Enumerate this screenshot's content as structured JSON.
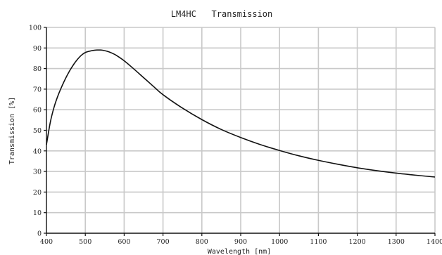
{
  "chart_data": {
    "type": "line",
    "title": "LM4HC   Transmission",
    "xlabel": "Wavelength [nm]",
    "ylabel": "Transmission [%]",
    "xlim": [
      400,
      1400
    ],
    "ylim": [
      0,
      100
    ],
    "x_ticks": [
      400,
      500,
      600,
      700,
      800,
      900,
      1000,
      1100,
      1200,
      1300,
      1400
    ],
    "y_ticks": [
      0,
      10,
      20,
      30,
      40,
      50,
      60,
      70,
      80,
      90,
      100
    ],
    "grid": true,
    "series": [
      {
        "x": [
          400,
          410,
          420,
          430,
          440,
          450,
          460,
          470,
          480,
          490,
          500,
          510,
          520,
          530,
          540,
          550,
          560,
          570,
          580,
          600,
          625,
          650,
          675,
          700,
          750,
          800,
          850,
          900,
          950,
          1000,
          1050,
          1100,
          1150,
          1200,
          1250,
          1300,
          1350,
          1400
        ],
        "y": [
          43,
          54,
          61.5,
          67,
          71.5,
          75.5,
          79,
          82,
          84.5,
          86.5,
          87.8,
          88.4,
          88.8,
          89,
          89,
          88.7,
          88.2,
          87.4,
          86.4,
          83.8,
          79.8,
          75.6,
          71.4,
          67.3,
          60.8,
          55.2,
          50.4,
          46.5,
          43.1,
          40.2,
          37.6,
          35.4,
          33.5,
          31.8,
          30.4,
          29.2,
          28.2,
          27.3
        ]
      }
    ]
  }
}
